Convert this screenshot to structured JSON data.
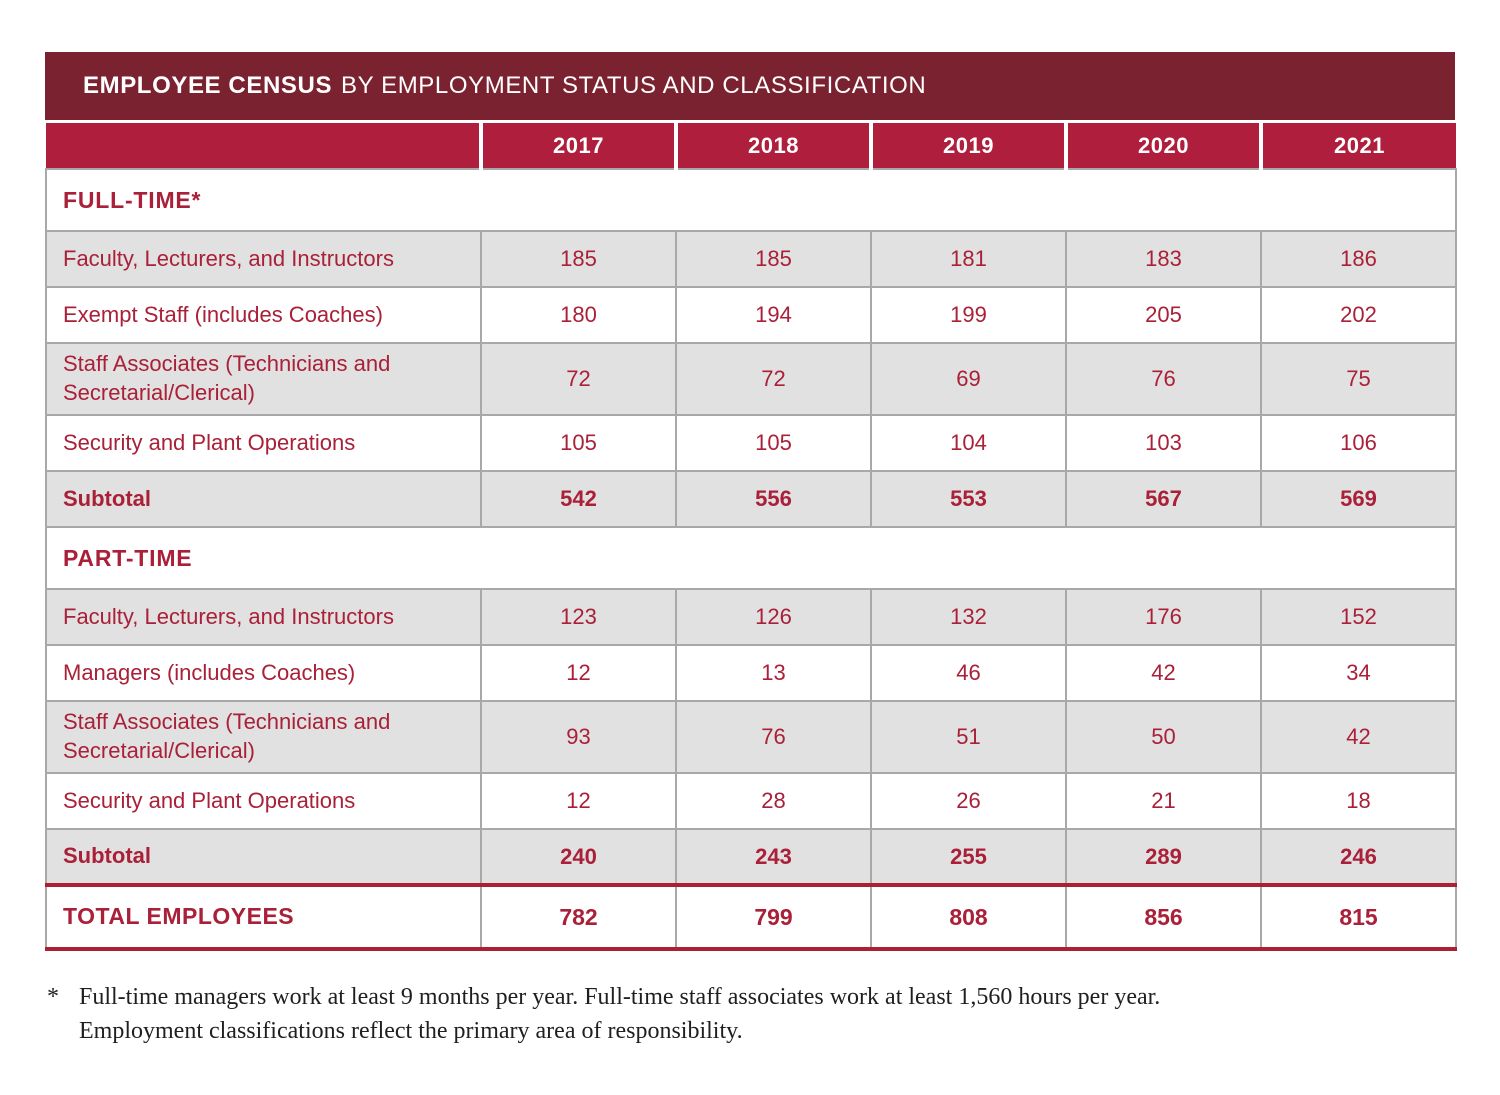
{
  "header": {
    "title_emphasis": "EMPLOYEE CENSUS",
    "title_rest": "BY EMPLOYMENT STATUS AND CLASSIFICATION"
  },
  "chart_data": {
    "type": "table",
    "columns": [
      "2017",
      "2018",
      "2019",
      "2020",
      "2021"
    ],
    "sections": [
      {
        "label": "FULL-TIME*",
        "rows": [
          {
            "label": "Faculty, Lecturers, and Instructors",
            "values": [
              185,
              185,
              181,
              183,
              186
            ]
          },
          {
            "label": "Exempt Staff (includes Coaches)",
            "values": [
              180,
              194,
              199,
              205,
              202
            ]
          },
          {
            "label": "Staff Associates (Technicians and Secretarial/Clerical)",
            "values": [
              72,
              72,
              69,
              76,
              75
            ]
          },
          {
            "label": "Security and Plant Operations",
            "values": [
              105,
              105,
              104,
              103,
              106
            ]
          }
        ],
        "subtotal": {
          "label": "Subtotal",
          "values": [
            542,
            556,
            553,
            567,
            569
          ]
        }
      },
      {
        "label": "PART-TIME",
        "rows": [
          {
            "label": "Faculty, Lecturers, and Instructors",
            "values": [
              123,
              126,
              132,
              176,
              152
            ]
          },
          {
            "label": "Managers (includes Coaches)",
            "values": [
              12,
              13,
              46,
              42,
              34
            ]
          },
          {
            "label": "Staff Associates (Technicians and Secretarial/Clerical)",
            "values": [
              93,
              76,
              51,
              50,
              42
            ]
          },
          {
            "label": "Security and Plant Operations",
            "values": [
              12,
              28,
              26,
              21,
              18
            ]
          }
        ],
        "subtotal": {
          "label": "Subtotal",
          "values": [
            240,
            243,
            255,
            289,
            246
          ]
        }
      }
    ],
    "total": {
      "label": "TOTAL EMPLOYEES",
      "values": [
        782,
        799,
        808,
        856,
        815
      ]
    }
  },
  "footnote": {
    "marker": "*",
    "line1": "Full-time managers work at least 9 months per year.  Full-time staff associates work at least 1,560 hours per year.",
    "line2": "Employment classifications reflect the primary area of responsibility."
  },
  "colors": {
    "title_bar": "#7b2231",
    "header": "#af1e3c",
    "accent": "#a92038",
    "shaded": "#e2e1e1",
    "grid": "#a7a9a9",
    "rule": "#ac2036"
  }
}
